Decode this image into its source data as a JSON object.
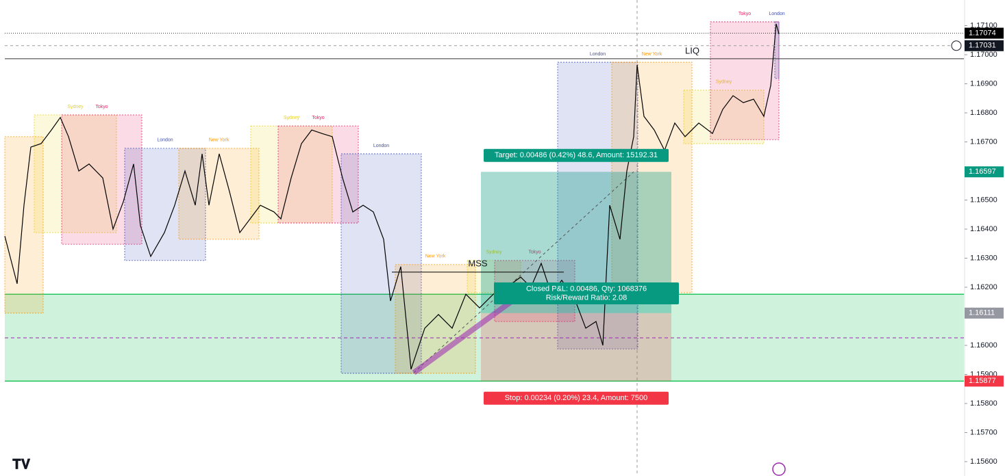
{
  "chart_data": {
    "type": "line",
    "color": "#000000",
    "xlim": [
      0,
      140
    ],
    "ylim": [
      1.155506,
      1.171882
    ],
    "yticks": [
      {
        "value": 1.171,
        "label": "1.17100"
      },
      {
        "value": 1.17,
        "label": "1.17000"
      },
      {
        "value": 1.169,
        "label": "1.16900"
      },
      {
        "value": 1.168,
        "label": "1.16800"
      },
      {
        "value": 1.167,
        "label": "1.16700"
      },
      {
        "value": 1.166,
        "label": "1.16600"
      },
      {
        "value": 1.165,
        "label": "1.16500"
      },
      {
        "value": 1.164,
        "label": "1.16400"
      },
      {
        "value": 1.163,
        "label": "1.16300"
      },
      {
        "value": 1.162,
        "label": "1.16200"
      },
      {
        "value": 1.161,
        "label": "1.16100"
      },
      {
        "value": 1.16,
        "label": "1.16000"
      },
      {
        "value": 1.159,
        "label": "1.15900"
      },
      {
        "value": 1.158,
        "label": "1.15800"
      },
      {
        "value": 1.157,
        "label": "1.15700"
      },
      {
        "value": 1.156,
        "label": "1.15600"
      }
    ],
    "x": [
      0,
      1.8,
      2.8,
      3.8,
      5.3,
      6.8,
      8.1,
      9.3,
      10.8,
      12.3,
      14.3,
      15.8,
      17.3,
      18.8,
      19.8,
      21.3,
      23.3,
      24.8,
      26.3,
      27.8,
      28.8,
      29.8,
      31.3,
      32.8,
      34.3,
      35.8,
      37.3,
      39.3,
      40.3,
      41.8,
      43.3,
      44.8,
      46.3,
      47.8,
      49.3,
      50.8,
      52.3,
      53.8,
      55.3,
      56.3,
      57.8,
      59.3,
      61.3,
      63.3,
      65.3,
      67.3,
      69.3,
      71.3,
      73.3,
      75.3,
      76.8,
      78.3,
      79.8,
      81.3,
      83.3,
      84.8,
      86.3,
      87.3,
      88.3,
      89.8,
      90.8,
      91.8,
      92.3,
      93.3,
      94.8,
      96.3,
      97.8,
      99.3,
      101.3,
      103.3,
      104.8,
      106.3,
      107.8,
      109.3,
      110.8,
      111.8,
      112.6,
      113
    ],
    "values": [
      1.16376,
      1.16212,
      1.16482,
      1.16682,
      1.16694,
      1.16741,
      1.16784,
      1.16718,
      1.166,
      1.16624,
      1.16576,
      1.164,
      1.16494,
      1.16624,
      1.16412,
      1.16306,
      1.16388,
      1.16482,
      1.166,
      1.16482,
      1.16659,
      1.16482,
      1.16659,
      1.16529,
      1.16388,
      1.16435,
      1.16482,
      1.16459,
      1.16435,
      1.16576,
      1.16694,
      1.16741,
      1.16729,
      1.16718,
      1.16576,
      1.16459,
      1.16482,
      1.16459,
      1.16365,
      1.16153,
      1.16271,
      1.15918,
      1.16059,
      1.16106,
      1.16059,
      1.16176,
      1.16129,
      1.16176,
      1.162,
      1.16235,
      1.162,
      1.16282,
      1.16176,
      1.16224,
      1.16153,
      1.16059,
      1.16082,
      1.16,
      1.16482,
      1.16365,
      1.166,
      1.16718,
      1.16965,
      1.16788,
      1.16741,
      1.16671,
      1.16765,
      1.16718,
      1.16765,
      1.16729,
      1.16812,
      1.16859,
      1.16835,
      1.16847,
      1.16788,
      1.16894,
      1.17106,
      1.17071
    ],
    "sessions": [
      {
        "x": [
          0,
          5.6
        ],
        "high": 1.16718,
        "low": 1.16111,
        "color": "#ff9800"
      },
      {
        "name": "Sydney",
        "x": [
          4.3,
          16.3
        ],
        "high": 1.16793,
        "low": 1.16388,
        "color": "#e6d21e"
      },
      {
        "name": "Tokyo",
        "x": [
          8.3,
          20
        ],
        "high": 1.16793,
        "low": 1.16348,
        "color": "#e91e63"
      },
      {
        "name": "London",
        "x": [
          17.5,
          29.3
        ],
        "high": 1.16678,
        "low": 1.16292,
        "color": "#3f51b5"
      },
      {
        "name": "New York",
        "x": [
          25.4,
          37.1
        ],
        "high": 1.16678,
        "low": 1.16365,
        "color": "#ff9800"
      },
      {
        "name": "Sydney",
        "x": [
          35.9,
          47.8
        ],
        "high": 1.16755,
        "low": 1.16421,
        "color": "#e6d21e"
      },
      {
        "name": "Tokyo",
        "x": [
          39.9,
          51.6
        ],
        "high": 1.16755,
        "low": 1.16421,
        "color": "#e91e63"
      },
      {
        "name": "London",
        "x": [
          49.1,
          60.8
        ],
        "high": 1.16659,
        "low": 1.15904,
        "color": "#3f51b5"
      },
      {
        "name": "New York",
        "x": [
          57,
          68.7
        ],
        "high": 1.16278,
        "low": 1.15904,
        "color": "#ff9800"
      },
      {
        "name": "Sydney",
        "x": [
          67.5,
          75.3
        ],
        "high": 1.16292,
        "low": 1.16181,
        "color": "#e6d21e"
      },
      {
        "name": "Tokyo",
        "x": [
          71.5,
          83.2
        ],
        "high": 1.16292,
        "low": 1.16082,
        "color": "#e91e63"
      },
      {
        "name": "London",
        "x": [
          80.7,
          92.4
        ],
        "high": 1.16974,
        "low": 1.15988,
        "color": "#3f51b5"
      },
      {
        "name": "New York",
        "x": [
          88.6,
          100.3
        ],
        "high": 1.16974,
        "low": 1.16181,
        "color": "#ff9800"
      },
      {
        "name": "Sydney",
        "x": [
          99.1,
          110.8
        ],
        "high": 1.16878,
        "low": 1.16694,
        "color": "#e6d21e"
      },
      {
        "name": "Tokyo",
        "x": [
          103,
          113
        ],
        "high": 1.17113,
        "low": 1.16708,
        "color": "#e91e63"
      },
      {
        "name": "London",
        "x": [
          112.4,
          113
        ],
        "high": 1.17113,
        "low": 1.16918,
        "color": "#3f51b5"
      }
    ],
    "zone": {
      "high": 1.16176,
      "low": 1.15877,
      "color": "#22c55e"
    },
    "liq": {
      "label": "LIQ",
      "value": 1.16986
    },
    "mss": {
      "label": "MSS",
      "value": 1.16252,
      "x": [
        56.5,
        81.6
      ]
    },
    "midline": {
      "value": 1.16026,
      "color": "#9c27b0"
    },
    "trendline": {
      "x": [
        59.7,
        76.8
      ],
      "values": [
        1.15906,
        1.162
      ],
      "color": "#9c27b0"
    },
    "position": {
      "x": [
        69.5,
        97.3
      ],
      "target": 1.16597,
      "entry": 1.16111,
      "stop": 1.15877,
      "target_label": "Target: 0.00486 (0.42%) 48.6, Amount: 15192.31",
      "pnl_label": "Closed P&L: 0.00486, Qty: 1068376",
      "rr_label": "Risk/Reward Ratio: 2.08",
      "stop_label": "Stop: 0.00234 (0.20%) 23.4, Amount: 7500"
    },
    "price_labels": [
      {
        "value": 1.17074,
        "color": "#000000"
      },
      {
        "value": 1.17031,
        "color": "#131722"
      },
      {
        "value": 1.16597,
        "color": "#089981"
      },
      {
        "value": 1.16111,
        "color": "#9598a1"
      },
      {
        "value": 1.15877,
        "color": "#f23645"
      }
    ]
  }
}
